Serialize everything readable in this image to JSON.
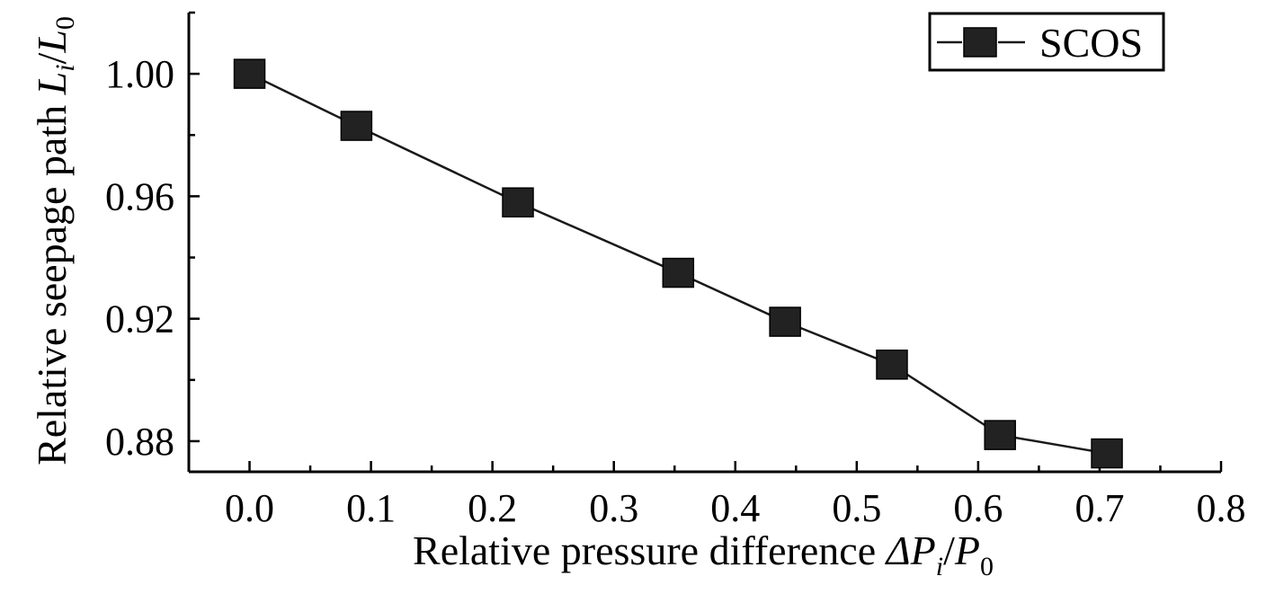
{
  "chart_data": {
    "type": "line",
    "x": [
      0.0,
      0.088,
      0.221,
      0.353,
      0.441,
      0.529,
      0.618,
      0.706
    ],
    "series": [
      {
        "name": "SCOS",
        "values": [
          1.0,
          0.983,
          0.958,
          0.935,
          0.919,
          0.905,
          0.882,
          0.876
        ]
      }
    ],
    "xlabel": {
      "main": "Relative pressure difference ",
      "sym1": "ΔP",
      "sub1": "i",
      "slash": "/",
      "sym2": "P",
      "sub2": "0"
    },
    "ylabel": {
      "main": "Relative seepage path ",
      "sym1": "L",
      "sub1": "i",
      "slash": "/",
      "sym2": "L",
      "sub2": "0"
    },
    "xlim": [
      -0.05,
      0.8
    ],
    "ylim": [
      0.87,
      1.02
    ],
    "x_ticks": [
      "0.0",
      "0.1",
      "0.2",
      "0.3",
      "0.4",
      "0.5",
      "0.6",
      "0.7",
      "0.8"
    ],
    "y_ticks": [
      "0.88",
      "0.92",
      "0.96",
      "1.00"
    ],
    "legend": {
      "position": "top-right",
      "label": "SCOS"
    },
    "grid": false,
    "colors": {
      "line": "#1a1a1a",
      "marker": "#222222"
    }
  }
}
